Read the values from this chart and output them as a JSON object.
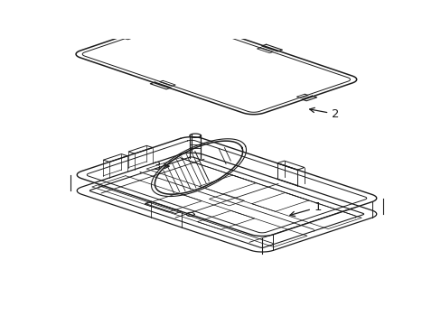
{
  "bg_color": "#ffffff",
  "line_color": "#1a1a1a",
  "lw": 1.0,
  "figsize": [
    4.89,
    3.6
  ],
  "dpi": 100
}
